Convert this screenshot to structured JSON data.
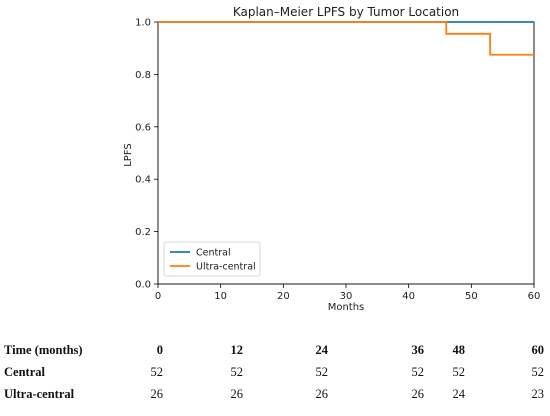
{
  "chart_data": {
    "type": "line",
    "title": "Kaplan–Meier LPFS by Tumor Location",
    "xlabel": "Months",
    "ylabel": "LPFS",
    "xlim": [
      0,
      60
    ],
    "ylim": [
      0,
      1.0
    ],
    "xticks": [
      "0",
      "10",
      "20",
      "30",
      "40",
      "50",
      "60"
    ],
    "yticks": [
      "0.0",
      "0.2",
      "0.4",
      "0.6",
      "0.8",
      "1.0"
    ],
    "grid": false,
    "legend": "lower-left",
    "series": [
      {
        "name": "Central",
        "color": "#1f77b4",
        "step": true,
        "x": [
          0,
          60
        ],
        "y": [
          1.0,
          1.0
        ]
      },
      {
        "name": "Ultra-central",
        "color": "#ff7f0e",
        "step": true,
        "x": [
          0,
          46,
          53,
          60
        ],
        "y": [
          1.0,
          0.955,
          0.875,
          0.875
        ]
      }
    ]
  },
  "risk_table": {
    "header_label": "Time (months)",
    "times": [
      "0",
      "12",
      "24",
      "36",
      "48",
      "60"
    ],
    "rows": [
      {
        "label": "Central",
        "values": [
          "52",
          "52",
          "52",
          "52",
          "52",
          "52"
        ]
      },
      {
        "label": "Ultra-central",
        "values": [
          "26",
          "26",
          "26",
          "26",
          "24",
          "23"
        ]
      }
    ]
  }
}
